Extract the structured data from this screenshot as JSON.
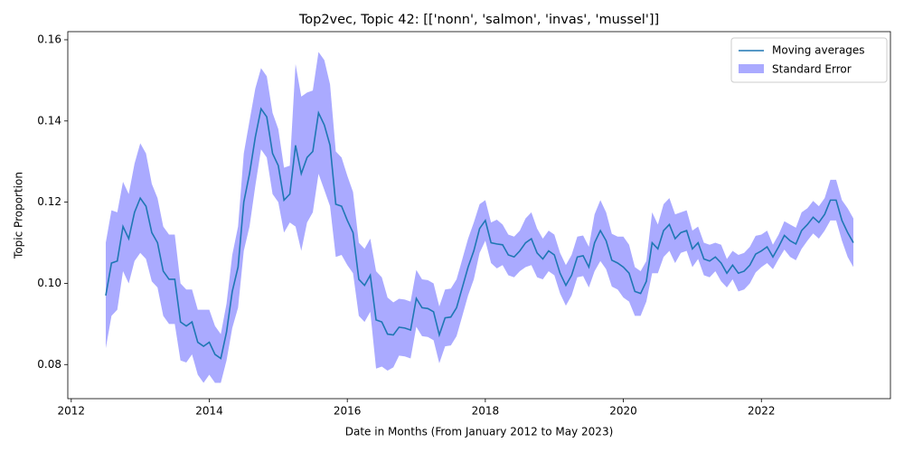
{
  "chart_data": {
    "type": "line-band",
    "title": "Top2vec, Topic 42: [['nonn', 'salmon', 'invas', 'mussel']]",
    "x_label": "Date in Months (From January 2012 to May 2023)",
    "y_label": "Topic Proportion",
    "xlim": [
      2011.95,
      2023.87
    ],
    "ylim": [
      0.0716,
      0.162
    ],
    "xticks": [
      2012,
      2014,
      2016,
      2018,
      2020,
      2022
    ],
    "yticks": [
      0.08,
      {
        "value": 0.1,
        "label": "0.10"
      },
      0.12,
      0.14,
      0.16
    ],
    "legend": "upper right",
    "x": [
      2012.5,
      2012.583,
      2012.667,
      2012.75,
      2012.833,
      2012.917,
      2013.0,
      2013.083,
      2013.167,
      2013.25,
      2013.333,
      2013.417,
      2013.5,
      2013.583,
      2013.667,
      2013.75,
      2013.833,
      2013.917,
      2014.0,
      2014.083,
      2014.167,
      2014.25,
      2014.333,
      2014.417,
      2014.5,
      2014.583,
      2014.667,
      2014.75,
      2014.833,
      2014.917,
      2015.0,
      2015.083,
      2015.167,
      2015.25,
      2015.333,
      2015.417,
      2015.5,
      2015.583,
      2015.667,
      2015.75,
      2015.833,
      2015.917,
      2016.0,
      2016.083,
      2016.167,
      2016.25,
      2016.333,
      2016.417,
      2016.5,
      2016.583,
      2016.667,
      2016.75,
      2016.833,
      2016.917,
      2017.0,
      2017.083,
      2017.167,
      2017.25,
      2017.333,
      2017.417,
      2017.5,
      2017.583,
      2017.667,
      2017.75,
      2017.833,
      2017.917,
      2018.0,
      2018.083,
      2018.167,
      2018.25,
      2018.333,
      2018.417,
      2018.5,
      2018.583,
      2018.667,
      2018.75,
      2018.833,
      2018.917,
      2019.0,
      2019.083,
      2019.167,
      2019.25,
      2019.333,
      2019.417,
      2019.5,
      2019.583,
      2019.667,
      2019.75,
      2019.833,
      2019.917,
      2020.0,
      2020.083,
      2020.167,
      2020.25,
      2020.333,
      2020.417,
      2020.5,
      2020.583,
      2020.667,
      2020.75,
      2020.833,
      2020.917,
      2021.0,
      2021.083,
      2021.167,
      2021.25,
      2021.333,
      2021.417,
      2021.5,
      2021.583,
      2021.667,
      2021.75,
      2021.833,
      2021.917,
      2022.0,
      2022.083,
      2022.167,
      2022.25,
      2022.333,
      2022.417,
      2022.5,
      2022.583,
      2022.667,
      2022.75,
      2022.833,
      2022.917,
      2023.0,
      2023.083,
      2023.167,
      2023.25,
      2023.333
    ],
    "series": [
      {
        "name": "Moving averages",
        "color": "#1f77b4",
        "values": [
          0.097,
          0.105,
          0.1055,
          0.114,
          0.111,
          0.1175,
          0.121,
          0.119,
          0.1125,
          0.11,
          0.103,
          0.101,
          0.101,
          0.0905,
          0.0895,
          0.0905,
          0.0855,
          0.0845,
          0.0855,
          0.0825,
          0.0815,
          0.088,
          0.098,
          0.104,
          0.12,
          0.127,
          0.136,
          0.143,
          0.141,
          0.132,
          0.129,
          0.1205,
          0.122,
          0.134,
          0.127,
          0.131,
          0.1325,
          0.142,
          0.139,
          0.134,
          0.1195,
          0.119,
          0.1155,
          0.1125,
          0.101,
          0.0995,
          0.102,
          0.091,
          0.0905,
          0.0875,
          0.0873,
          0.0892,
          0.089,
          0.0885,
          0.0963,
          0.094,
          0.0938,
          0.093,
          0.0873,
          0.0915,
          0.0917,
          0.094,
          0.099,
          0.104,
          0.108,
          0.1135,
          0.1155,
          0.11,
          0.1097,
          0.1095,
          0.107,
          0.1065,
          0.108,
          0.11,
          0.111,
          0.1075,
          0.106,
          0.108,
          0.107,
          0.1025,
          0.0995,
          0.102,
          0.1065,
          0.1068,
          0.104,
          0.11,
          0.113,
          0.1105,
          0.1057,
          0.105,
          0.104,
          0.1025,
          0.098,
          0.0975,
          0.1005,
          0.11,
          0.1085,
          0.113,
          0.1145,
          0.111,
          0.1125,
          0.113,
          0.1085,
          0.11,
          0.106,
          0.1055,
          0.1065,
          0.105,
          0.1025,
          0.1045,
          0.1025,
          0.103,
          0.1045,
          0.1072,
          0.108,
          0.109,
          0.1065,
          0.109,
          0.1118,
          0.1105,
          0.1097,
          0.113,
          0.1145,
          0.1163,
          0.115,
          0.117,
          0.1205,
          0.1205,
          0.1155,
          0.1125,
          0.11
        ]
      },
      {
        "name": "Standard Error",
        "color": "#aaaaff",
        "values": [
          0.013,
          0.013,
          0.012,
          0.011,
          0.011,
          0.012,
          0.0135,
          0.013,
          0.012,
          0.011,
          0.011,
          0.011,
          0.011,
          0.0095,
          0.009,
          0.008,
          0.008,
          0.009,
          0.008,
          0.007,
          0.006,
          0.007,
          0.009,
          0.01,
          0.012,
          0.013,
          0.012,
          0.01,
          0.01,
          0.01,
          0.009,
          0.008,
          0.007,
          0.02,
          0.019,
          0.016,
          0.015,
          0.015,
          0.016,
          0.015,
          0.013,
          0.012,
          0.011,
          0.01,
          0.009,
          0.009,
          0.009,
          0.012,
          0.011,
          0.009,
          0.008,
          0.007,
          0.007,
          0.007,
          0.007,
          0.007,
          0.007,
          0.007,
          0.007,
          0.007,
          0.007,
          0.007,
          0.007,
          0.007,
          0.007,
          0.006,
          0.005,
          0.005,
          0.006,
          0.005,
          0.005,
          0.005,
          0.005,
          0.006,
          0.0065,
          0.006,
          0.005,
          0.005,
          0.005,
          0.005,
          0.005,
          0.005,
          0.005,
          0.005,
          0.005,
          0.007,
          0.0075,
          0.007,
          0.0065,
          0.0065,
          0.0075,
          0.007,
          0.006,
          0.0055,
          0.005,
          0.0075,
          0.006,
          0.0065,
          0.0065,
          0.006,
          0.005,
          0.005,
          0.0045,
          0.004,
          0.004,
          0.004,
          0.0035,
          0.0045,
          0.0035,
          0.0035,
          0.0045,
          0.0045,
          0.0045,
          0.0045,
          0.004,
          0.004,
          0.003,
          0.003,
          0.0035,
          0.004,
          0.004,
          0.0045,
          0.004,
          0.004,
          0.004,
          0.004,
          0.005,
          0.005,
          0.005,
          0.006,
          0.006
        ]
      }
    ]
  }
}
